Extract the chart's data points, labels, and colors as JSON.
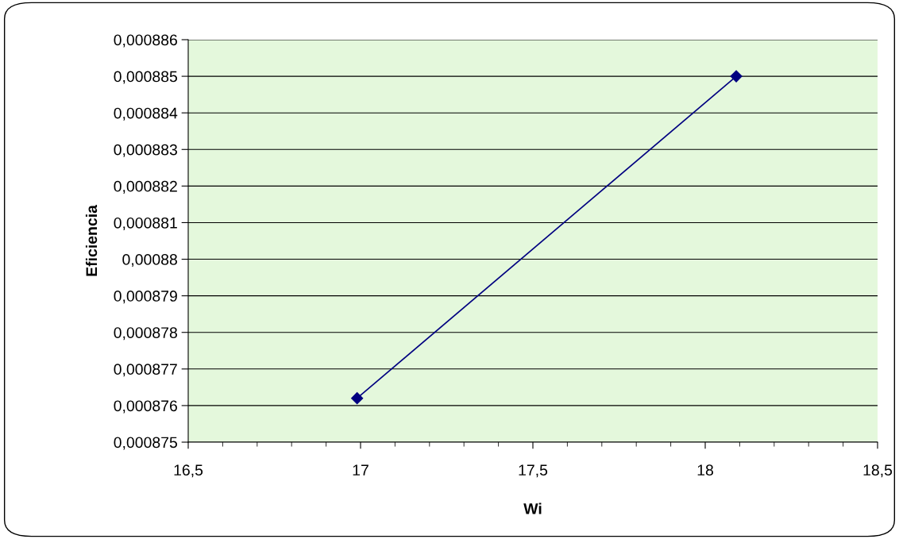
{
  "chart_data": {
    "type": "line",
    "xlabel": "Wi",
    "ylabel": "Eficiencia",
    "x": [
      16.99,
      18.09
    ],
    "series": [
      {
        "color": "#000080",
        "values": [
          0.0008762,
          0.000885
        ]
      }
    ],
    "marker": "diamond",
    "line_style": "solid",
    "grid": "y",
    "legend": false,
    "xlim": [
      16.5,
      18.5
    ],
    "xticks": [
      {
        "value": 16.5,
        "label": "16,5"
      },
      17,
      {
        "value": 17.5,
        "label": "17,5"
      },
      18,
      {
        "value": 18.5,
        "label": "18,5"
      }
    ],
    "ylim": [
      0.000875,
      0.000886
    ],
    "yticks": [
      {
        "value": 0.000875,
        "label": "0,000875"
      },
      {
        "value": 0.000876,
        "label": "0,000876"
      },
      {
        "value": 0.000877,
        "label": "0,000877"
      },
      {
        "value": 0.000878,
        "label": "0,000878"
      },
      {
        "value": 0.000879,
        "label": "0,000879"
      },
      {
        "value": 0.00088,
        "label": "0,00088"
      },
      {
        "value": 0.000881,
        "label": "0,000881"
      },
      {
        "value": 0.000882,
        "label": "0,000882"
      },
      {
        "value": 0.000883,
        "label": "0,000883"
      },
      {
        "value": 0.000884,
        "label": "0,000884"
      },
      {
        "value": 0.000885,
        "label": "0,000885"
      },
      {
        "value": 0.000886,
        "label": "0,000886"
      }
    ]
  }
}
